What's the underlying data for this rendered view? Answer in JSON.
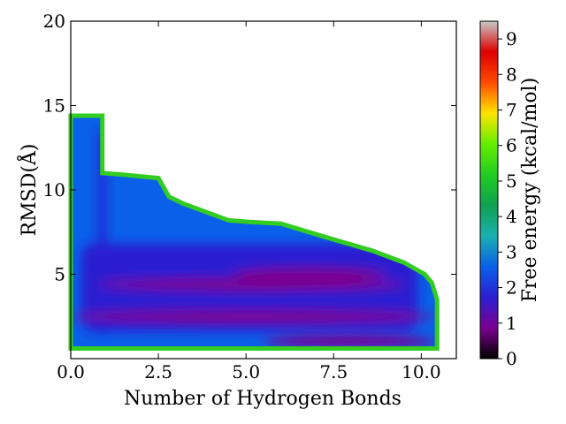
{
  "chart_data": {
    "type": "heatmap",
    "title": "",
    "xlabel": "Number of Hydrogen Bonds",
    "ylabel": "RMSD(Å)",
    "colorbar_label": "Free energy (kcal/mol)",
    "xlim": [
      0,
      11
    ],
    "ylim": [
      0,
      20
    ],
    "xticks": [
      "0.0",
      "2.5",
      "5.0",
      "7.5",
      "10.0"
    ],
    "xtick_values": [
      0,
      2.5,
      5,
      7.5,
      10
    ],
    "yticks": [
      "5",
      "10",
      "15",
      "20"
    ],
    "ytick_values": [
      5,
      10,
      15,
      20
    ],
    "colorbar_range": [
      0,
      9.5
    ],
    "colorbar_ticks": [
      "0",
      "1",
      "2",
      "3",
      "4",
      "5",
      "6",
      "7",
      "8",
      "9"
    ],
    "colorbar_tick_values": [
      0,
      1,
      2,
      3,
      4,
      5,
      6,
      7,
      8,
      9
    ],
    "colormap": [
      "#000000",
      "#7a0090",
      "#2a1fd0",
      "#0a60e8",
      "#1ab0b0",
      "#0fa050",
      "#22cc22",
      "#66ee00",
      "#ffe400",
      "#ff4a00",
      "#dd0000",
      "#c8c8c8"
    ],
    "grid": false,
    "region_outline": [
      [
        0,
        14.4
      ],
      [
        0.9,
        14.4
      ],
      [
        0.9,
        11.0
      ],
      [
        1.5,
        10.9
      ],
      [
        2.5,
        10.7
      ],
      [
        2.8,
        9.6
      ],
      [
        3.2,
        9.2
      ],
      [
        4.5,
        8.2
      ],
      [
        5.1,
        8.1
      ],
      [
        6.0,
        8.0
      ],
      [
        6.8,
        7.5
      ],
      [
        7.6,
        7.0
      ],
      [
        8.6,
        6.4
      ],
      [
        9.5,
        5.7
      ],
      [
        10.1,
        5.0
      ],
      [
        10.3,
        4.5
      ],
      [
        10.45,
        3.5
      ],
      [
        10.45,
        0.6
      ],
      [
        0,
        0.6
      ]
    ],
    "low_energy_bands": [
      {
        "x_range": [
          0.0,
          10.4
        ],
        "rmsd": 2.5,
        "energy": 1.1
      },
      {
        "x_range": [
          0.8,
          9.5
        ],
        "rmsd": 4.4,
        "energy": 1.0
      },
      {
        "x_range": [
          4.6,
          9.0
        ],
        "rmsd": 5.0,
        "energy": 0.9
      },
      {
        "x_range": [
          5.5,
          10.4
        ],
        "rmsd": 1.0,
        "energy": 1.2
      },
      {
        "x_range": [
          0.8,
          1.0
        ],
        "rmsd": 6.0,
        "energy": 1.3
      }
    ]
  }
}
